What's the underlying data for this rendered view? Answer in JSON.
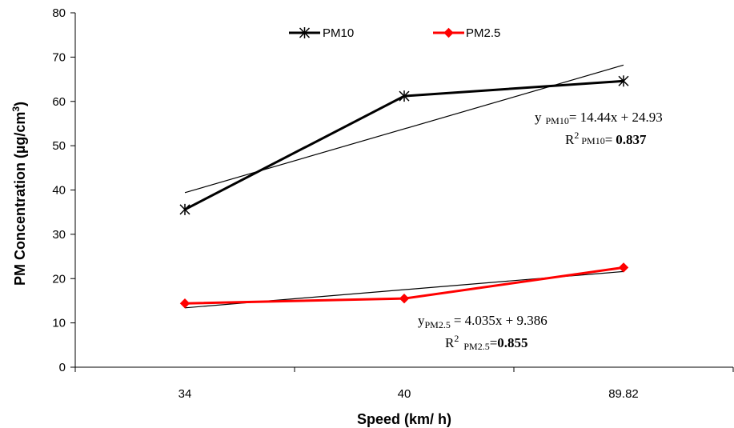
{
  "chart_data": {
    "type": "line",
    "categories": [
      "34",
      "40",
      "89.82"
    ],
    "series": [
      {
        "name": "PM10",
        "color": "#000000",
        "marker": "asterisk",
        "values": [
          35.6,
          61.2,
          64.6
        ],
        "trend": {
          "start": 39.4,
          "end": 68.2
        }
      },
      {
        "name": "PM2.5",
        "color": "#ff0000",
        "marker": "diamond",
        "values": [
          14.4,
          15.5,
          22.5
        ],
        "trend": {
          "start": 13.4,
          "end": 21.6
        }
      }
    ],
    "xlabel": "Speed (km/ h)",
    "ylabel": {
      "main": "PM Concentration (µg/cm",
      "sup": "3",
      "end": ")"
    },
    "ylim": [
      0,
      80
    ],
    "yticks": [
      0,
      10,
      20,
      30,
      40,
      50,
      60,
      70,
      80
    ],
    "grid": false,
    "legend_position": "top",
    "annotations": {
      "pm10_eq": {
        "y": "y",
        "sub": "PM10",
        "rest": "= 14.44x + 24.93"
      },
      "pm10_r2": {
        "r": "R",
        "sup": "2",
        "sub": "PM10",
        "eqsign": "=",
        "val": "0.837"
      },
      "pm25_eq": {
        "y": "y",
        "sub": "PM2.5",
        "rest": "= 4.035x + 9.386"
      },
      "pm25_r2": {
        "r": "R",
        "sup": "2",
        "sub": "PM2.5",
        "eqsign": "=",
        "val": "0.855"
      }
    }
  }
}
